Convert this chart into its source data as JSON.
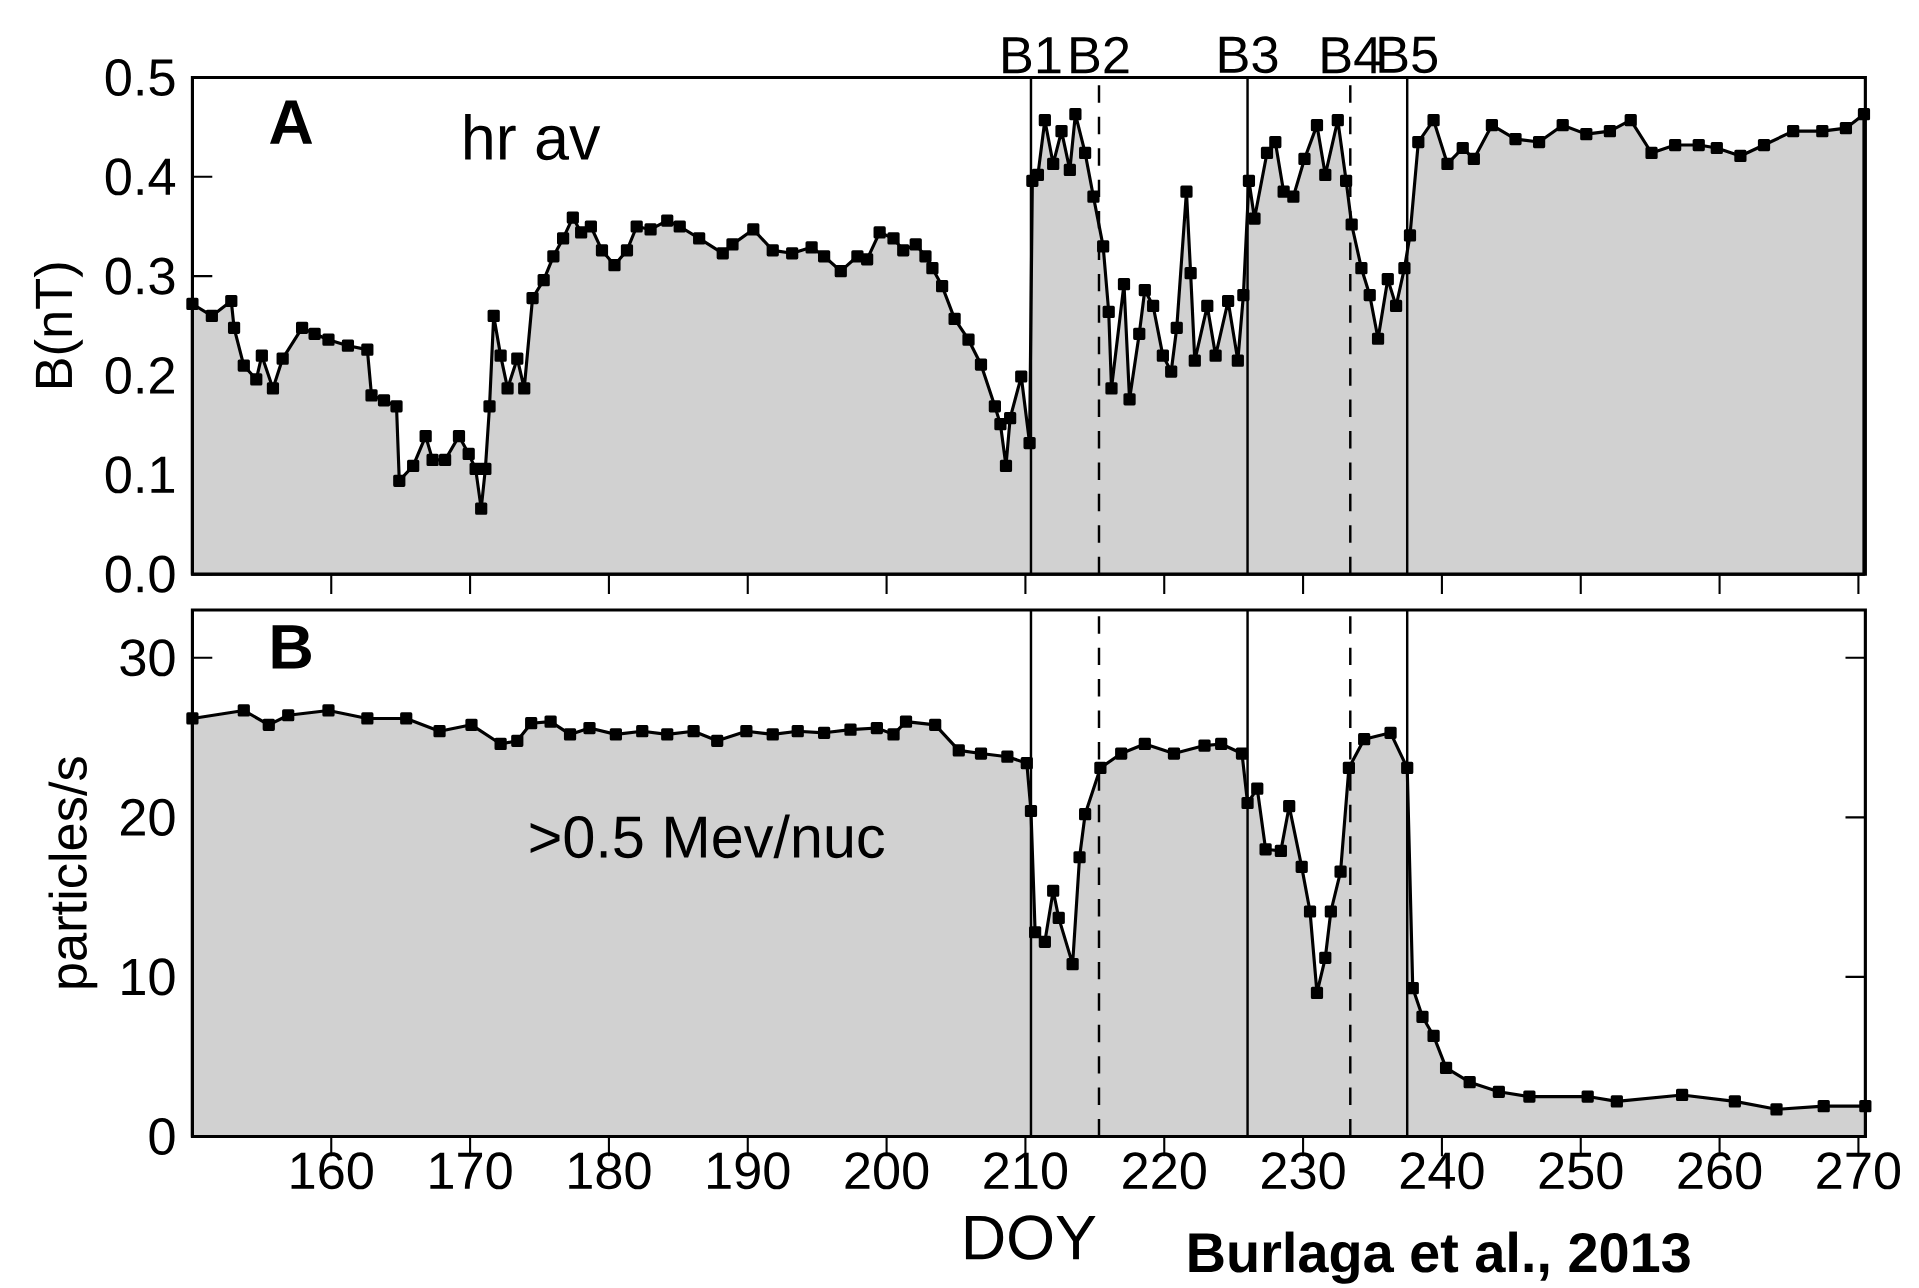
{
  "chart_data": [
    {
      "type": "area",
      "ylabel": "B(nT)",
      "marker": "square",
      "tick_labels": "y",
      "xlim": [
        150,
        270.5
      ],
      "ylim": [
        0,
        0.5
      ],
      "xticks": [
        160,
        170,
        180,
        190,
        200,
        210,
        220,
        230,
        240,
        250,
        260,
        270
      ],
      "yticks": [
        {
          "value": 0,
          "label": "0.0"
        },
        {
          "value": 0.1,
          "label": "0.1"
        },
        {
          "value": 0.2,
          "label": "0.2"
        },
        {
          "value": 0.3,
          "label": "0.3"
        },
        {
          "value": 0.4,
          "label": "0.4"
        },
        {
          "value": 0.5,
          "label": "0.5"
        }
      ],
      "annotations": [
        "A",
        "hr av"
      ],
      "ref_lines": [
        {
          "axis": "x",
          "value": 210.4,
          "label": "B1",
          "line_style": "solid",
          "color": "#000000"
        },
        {
          "axis": "x",
          "value": 215.3,
          "label": "B2",
          "line_style": "dashed",
          "color": "#000000"
        },
        {
          "axis": "x",
          "value": 226.0,
          "label": "B3",
          "line_style": "solid",
          "color": "#000000"
        },
        {
          "axis": "x",
          "value": 233.4,
          "label": "B4",
          "line_style": "dashed",
          "color": "#000000"
        },
        {
          "axis": "x",
          "value": 237.5,
          "label": "B5",
          "line_style": "solid",
          "color": "#000000"
        }
      ],
      "x": [
        150,
        151.4,
        152.8,
        153.0,
        153.7,
        154.6,
        155.0,
        155.8,
        156.5,
        157.9,
        158.8,
        159.8,
        161.2,
        162.6,
        162.9,
        163.8,
        164.7,
        164.9,
        165.9,
        166.8,
        167.3,
        168.2,
        169.2,
        169.9,
        170.4,
        170.8,
        171.1,
        171.4,
        171.7,
        172.2,
        172.7,
        173.4,
        173.9,
        174.5,
        175.3,
        176.0,
        176.7,
        177.4,
        178.0,
        178.7,
        179.5,
        180.4,
        181.3,
        182.0,
        183.0,
        184.2,
        185.1,
        186.5,
        188.2,
        188.9,
        190.4,
        191.8,
        193.2,
        194.6,
        195.5,
        196.7,
        197.9,
        198.6,
        199.5,
        200.5,
        201.2,
        202.1,
        202.8,
        203.3,
        204.0,
        204.9,
        205.9,
        206.8,
        207.8,
        208.2,
        208.6,
        208.9,
        209.7,
        210.3,
        210.5,
        210.9,
        211.4,
        212.0,
        212.6,
        213.2,
        213.6,
        214.3,
        214.9,
        215.6,
        216.0,
        216.2,
        217.1,
        217.5,
        218.2,
        218.6,
        219.2,
        219.9,
        220.5,
        220.9,
        221.6,
        221.9,
        222.2,
        223.1,
        223.7,
        224.6,
        225.3,
        225.7,
        226.1,
        226.5,
        227.4,
        228.0,
        228.6,
        229.3,
        230.1,
        231.0,
        231.6,
        232.5,
        233.1,
        233.5,
        234.2,
        234.8,
        235.4,
        236.1,
        236.7,
        237.3,
        237.7,
        238.3,
        239.4,
        240.4,
        241.5,
        242.3,
        243.6,
        245.3,
        247.0,
        248.7,
        250.4,
        252.1,
        253.6,
        255.1,
        256.8,
        258.5,
        259.8,
        261.5,
        263.2,
        265.3,
        267.4,
        269.1,
        270.4
      ],
      "series": [
        {
          "color": "#000000",
          "values": [
            0.272,
            0.26,
            0.275,
            0.248,
            0.21,
            0.196,
            0.22,
            0.187,
            0.217,
            0.248,
            0.242,
            0.236,
            0.23,
            0.226,
            0.18,
            0.175,
            0.169,
            0.094,
            0.109,
            0.139,
            0.115,
            0.115,
            0.139,
            0.121,
            0.106,
            0.066,
            0.106,
            0.169,
            0.26,
            0.22,
            0.187,
            0.217,
            0.187,
            0.278,
            0.296,
            0.32,
            0.338,
            0.359,
            0.344,
            0.35,
            0.326,
            0.311,
            0.326,
            0.35,
            0.347,
            0.356,
            0.35,
            0.338,
            0.323,
            0.332,
            0.347,
            0.326,
            0.323,
            0.329,
            0.32,
            0.305,
            0.32,
            0.317,
            0.344,
            0.338,
            0.326,
            0.332,
            0.32,
            0.308,
            0.29,
            0.257,
            0.236,
            0.211,
            0.169,
            0.151,
            0.109,
            0.157,
            0.199,
            0.132,
            0.396,
            0.402,
            0.457,
            0.413,
            0.446,
            0.407,
            0.463,
            0.424,
            0.38,
            0.33,
            0.264,
            0.187,
            0.292,
            0.176,
            0.242,
            0.286,
            0.27,
            0.22,
            0.204,
            0.248,
            0.385,
            0.303,
            0.215,
            0.27,
            0.22,
            0.275,
            0.215,
            0.281,
            0.396,
            0.358,
            0.424,
            0.435,
            0.385,
            0.38,
            0.418,
            0.452,
            0.402,
            0.457,
            0.396,
            0.352,
            0.308,
            0.281,
            0.237,
            0.297,
            0.27,
            0.308,
            0.341,
            0.435,
            0.457,
            0.413,
            0.429,
            0.418,
            0.452,
            0.438,
            0.435,
            0.452,
            0.443,
            0.446,
            0.457,
            0.424,
            0.432,
            0.432,
            0.429,
            0.421,
            0.432,
            0.446,
            0.446,
            0.449,
            0.463
          ]
        }
      ]
    },
    {
      "type": "area",
      "ylabel": "particles/s",
      "xlabel": "DOY",
      "marker": "square",
      "xlim": [
        150,
        270.5
      ],
      "ylim": [
        0,
        33
      ],
      "xticks": [
        160,
        170,
        180,
        190,
        200,
        210,
        220,
        230,
        240,
        250,
        260,
        270
      ],
      "yticks": [
        0,
        10,
        20,
        30
      ],
      "annotations": [
        "B",
        ">0.5 Mev/nuc",
        "Burlaga et al., 2013"
      ],
      "ref_lines": [
        {
          "axis": "x",
          "value": 210.4,
          "line_style": "solid",
          "color": "#000000"
        },
        {
          "axis": "x",
          "value": 215.3,
          "line_style": "dashed",
          "color": "#000000"
        },
        {
          "axis": "x",
          "value": 226.0,
          "line_style": "solid",
          "color": "#000000"
        },
        {
          "axis": "x",
          "value": 233.4,
          "line_style": "dashed",
          "color": "#000000"
        },
        {
          "axis": "x",
          "value": 237.5,
          "line_style": "solid",
          "color": "#000000"
        }
      ],
      "x": [
        150,
        153.7,
        155.5,
        156.9,
        159.8,
        162.6,
        165.4,
        167.8,
        170.1,
        172.2,
        173.4,
        174.4,
        175.8,
        177.2,
        178.6,
        180.5,
        182.4,
        184.2,
        186.1,
        187.8,
        189.9,
        191.8,
        193.6,
        195.5,
        197.4,
        199.3,
        200.5,
        201.4,
        203.5,
        205.2,
        206.8,
        208.7,
        210.1,
        210.4,
        210.7,
        211.4,
        212.0,
        212.4,
        213.4,
        213.9,
        214.3,
        215.4,
        216.9,
        218.6,
        220.7,
        222.9,
        224.1,
        225.6,
        226.0,
        226.7,
        227.3,
        228.4,
        229.0,
        229.9,
        230.5,
        231.0,
        231.6,
        232.0,
        232.7,
        233.3,
        234.4,
        236.3,
        237.5,
        237.9,
        238.6,
        239.4,
        240.3,
        242.0,
        244.1,
        246.3,
        250.5,
        252.6,
        257.3,
        261.1,
        264.1,
        267.5,
        270.5
      ],
      "series": [
        {
          "color": "#000000",
          "values": [
            26.2,
            26.7,
            25.8,
            26.4,
            26.7,
            26.2,
            26.2,
            25.4,
            25.8,
            24.6,
            24.8,
            25.9,
            26.0,
            25.2,
            25.6,
            25.2,
            25.4,
            25.2,
            25.4,
            24.8,
            25.4,
            25.2,
            25.4,
            25.3,
            25.5,
            25.6,
            25.2,
            26.0,
            25.8,
            24.2,
            24.0,
            23.8,
            23.4,
            20.4,
            12.8,
            12.2,
            15.4,
            13.7,
            10.8,
            17.5,
            20.2,
            23.1,
            24.0,
            24.6,
            24.0,
            24.5,
            24.6,
            24.0,
            20.9,
            21.8,
            18.0,
            17.9,
            20.7,
            16.9,
            14.1,
            9.0,
            11.2,
            14.1,
            16.6,
            23.1,
            24.9,
            25.3,
            23.1,
            9.3,
            7.5,
            6.3,
            4.3,
            3.4,
            2.8,
            2.5,
            2.5,
            2.2,
            2.6,
            2.2,
            1.7,
            1.9,
            1.9
          ]
        }
      ]
    }
  ]
}
